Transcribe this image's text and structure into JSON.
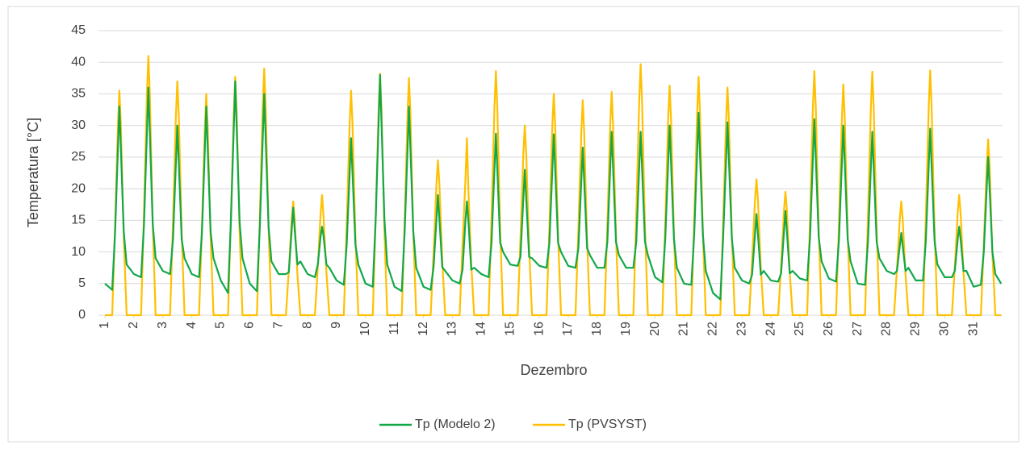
{
  "chart_data": {
    "type": "line",
    "ylabel": "Temperatura [°C]",
    "xlabel": "Dezembro",
    "xlim": [
      1,
      32
    ],
    "xticks": [
      1,
      2,
      3,
      4,
      5,
      6,
      7,
      8,
      9,
      10,
      11,
      12,
      13,
      14,
      15,
      16,
      17,
      18,
      19,
      20,
      21,
      22,
      23,
      24,
      25,
      26,
      27,
      28,
      29,
      30,
      31
    ],
    "ylim": [
      0,
      45
    ],
    "yticks": [
      0,
      5,
      10,
      15,
      20,
      25,
      30,
      35,
      40,
      45
    ],
    "grid": true,
    "legend": "bottom",
    "x": [
      1,
      1.25,
      1.35,
      1.45,
      1.5,
      1.55,
      1.65,
      1.75,
      2,
      2.25,
      2.35,
      2.45,
      2.5,
      2.55,
      2.65,
      2.75,
      3,
      3.25,
      3.35,
      3.45,
      3.5,
      3.55,
      3.65,
      3.75,
      4,
      4.25,
      4.35,
      4.45,
      4.5,
      4.55,
      4.65,
      4.75,
      5,
      5.25,
      5.35,
      5.45,
      5.5,
      5.55,
      5.65,
      5.75,
      6,
      6.25,
      6.35,
      6.45,
      6.5,
      6.55,
      6.65,
      6.75,
      7,
      7.25,
      7.35,
      7.45,
      7.5,
      7.55,
      7.65,
      7.75,
      8,
      8.25,
      8.35,
      8.45,
      8.5,
      8.55,
      8.65,
      8.75,
      9,
      9.25,
      9.35,
      9.45,
      9.5,
      9.55,
      9.65,
      9.75,
      10,
      10.25,
      10.35,
      10.45,
      10.5,
      10.55,
      10.65,
      10.75,
      11,
      11.25,
      11.35,
      11.45,
      11.5,
      11.55,
      11.65,
      11.75,
      12,
      12.25,
      12.35,
      12.45,
      12.5,
      12.55,
      12.65,
      12.75,
      13,
      13.25,
      13.35,
      13.45,
      13.5,
      13.55,
      13.65,
      13.75,
      14,
      14.25,
      14.35,
      14.45,
      14.5,
      14.55,
      14.65,
      14.75,
      15,
      15.25,
      15.35,
      15.45,
      15.5,
      15.55,
      15.65,
      15.75,
      16,
      16.25,
      16.35,
      16.45,
      16.5,
      16.55,
      16.65,
      16.75,
      17,
      17.25,
      17.35,
      17.45,
      17.5,
      17.55,
      17.65,
      17.75,
      18,
      18.25,
      18.35,
      18.45,
      18.5,
      18.55,
      18.65,
      18.75,
      19,
      19.25,
      19.35,
      19.45,
      19.5,
      19.55,
      19.65,
      19.75,
      20,
      20.25,
      20.35,
      20.45,
      20.5,
      20.55,
      20.65,
      20.75,
      21,
      21.25,
      21.35,
      21.45,
      21.5,
      21.55,
      21.65,
      21.75,
      22,
      22.25,
      22.35,
      22.45,
      22.5,
      22.55,
      22.65,
      22.75,
      23,
      23.25,
      23.35,
      23.45,
      23.5,
      23.55,
      23.65,
      23.75,
      24,
      24.25,
      24.35,
      24.45,
      24.5,
      24.55,
      24.65,
      24.75,
      25,
      25.25,
      25.35,
      25.45,
      25.5,
      25.55,
      25.65,
      25.75,
      26,
      26.25,
      26.35,
      26.45,
      26.5,
      26.55,
      26.65,
      26.75,
      27,
      27.25,
      27.35,
      27.45,
      27.5,
      27.55,
      27.65,
      27.75,
      28,
      28.25,
      28.35,
      28.45,
      28.5,
      28.55,
      28.65,
      28.75,
      29,
      29.25,
      29.35,
      29.45,
      29.5,
      29.55,
      29.65,
      29.75,
      30,
      30.25,
      30.35,
      30.45,
      30.5,
      30.55,
      30.65,
      30.75,
      31,
      31.25,
      31.35,
      31.45,
      31.5,
      31.55,
      31.65,
      31.75,
      31.95
    ],
    "series": [
      {
        "name": "Tp (Modelo 2)",
        "color": "#12a84a",
        "values": [
          5,
          4,
          13.2,
          26.4,
          33,
          26.4,
          13.2,
          8,
          6.5,
          6,
          14.4,
          28.8,
          36,
          28.8,
          14.4,
          9,
          7,
          6.5,
          12,
          24,
          30,
          24,
          12,
          9,
          6.5,
          6,
          13.2,
          26.4,
          33,
          26.4,
          13.2,
          9,
          5.5,
          3.5,
          14.8,
          29.6,
          37,
          29.6,
          14.8,
          9,
          5,
          3.8,
          14,
          28,
          35,
          28,
          14,
          8.5,
          6.5,
          6.5,
          6.8,
          13.6,
          17,
          13.6,
          8,
          8.5,
          6.5,
          6,
          8,
          12.5,
          14,
          12.5,
          8,
          7.5,
          5.5,
          4.8,
          11.2,
          22.4,
          28,
          22.4,
          11.2,
          8,
          5,
          4.5,
          15.2,
          30.4,
          38,
          30.4,
          15.2,
          8,
          4.5,
          3.8,
          13.2,
          26.4,
          33,
          26.4,
          13.2,
          7.5,
          4.5,
          4,
          7.6,
          15.2,
          19,
          15.2,
          7.6,
          7,
          5.5,
          5,
          7.2,
          15,
          18,
          15,
          7.2,
          7.5,
          6.5,
          6,
          11.5,
          23,
          28.7,
          23,
          11.5,
          10,
          8,
          7.8,
          9.2,
          18.4,
          23,
          18.4,
          9.2,
          9,
          7.8,
          7.5,
          11.4,
          22.9,
          28.6,
          22.9,
          11.4,
          10,
          7.8,
          7.5,
          10.6,
          21.2,
          26.5,
          21.2,
          10.6,
          9.5,
          7.5,
          7.5,
          11.6,
          23.2,
          29,
          23.2,
          11.6,
          9.5,
          7.5,
          7.5,
          11.6,
          23.2,
          29,
          23.2,
          11.6,
          9.5,
          6,
          5.2,
          12,
          24,
          30,
          24,
          12,
          7.5,
          5,
          4.8,
          12.8,
          25.6,
          32,
          25.6,
          12.8,
          7,
          3.5,
          2.5,
          12.2,
          24.4,
          30.5,
          24.4,
          12.2,
          7.5,
          5.5,
          5,
          6.4,
          12.8,
          16,
          12.8,
          6.4,
          7,
          5.5,
          5.3,
          6.6,
          13.2,
          16.5,
          13.2,
          6.6,
          7,
          5.8,
          5.5,
          12.4,
          24.8,
          31,
          24.8,
          12.4,
          8.5,
          5.8,
          5.3,
          12,
          24,
          30,
          24,
          12,
          8.5,
          5,
          4.8,
          11.6,
          23.2,
          29,
          23.2,
          11.6,
          9,
          7,
          6.5,
          7,
          11,
          13,
          11,
          7,
          7.5,
          5.5,
          5.5,
          11.8,
          23.6,
          29.5,
          23.6,
          11.8,
          8,
          6,
          6,
          7,
          12,
          14,
          12,
          7,
          7,
          4.5,
          4.8,
          10,
          20,
          25,
          20,
          10,
          6.5,
          5
        ]
      },
      {
        "name": "Tp (PVSYST)",
        "color": "#ffc000",
        "values": [
          0,
          0,
          14.2,
          30.2,
          35.5,
          30.2,
          12.4,
          0,
          0,
          0,
          16.4,
          34.9,
          41,
          34.9,
          14.4,
          0,
          0,
          0,
          14.8,
          31.5,
          37,
          31.5,
          13,
          0,
          0,
          0,
          14,
          29.8,
          35,
          29.8,
          12.3,
          0,
          0,
          0,
          15.1,
          32,
          37.7,
          32,
          13.2,
          0,
          0,
          0,
          15.6,
          33.2,
          39,
          33.2,
          13.7,
          0,
          0,
          0,
          7.2,
          15.3,
          18,
          15.3,
          6.3,
          0,
          0,
          0,
          7.6,
          16.2,
          19,
          15.5,
          6.7,
          0,
          0,
          0,
          14.2,
          30.2,
          35.5,
          30.2,
          12.4,
          0,
          0,
          0,
          15.3,
          32.5,
          38.2,
          32.5,
          13.4,
          0,
          0,
          0,
          15,
          31.9,
          37.5,
          31.9,
          13.1,
          0,
          0,
          0,
          9.8,
          20.8,
          24.5,
          20.8,
          8.6,
          0,
          0,
          0,
          11.2,
          21.5,
          28,
          20,
          8,
          0,
          0,
          0,
          15.4,
          32.8,
          38.6,
          32.8,
          13.5,
          0,
          0,
          0,
          12,
          25.5,
          30,
          25.5,
          10.5,
          0,
          0,
          0,
          14,
          29.8,
          35,
          29.8,
          12.3,
          0,
          0,
          0,
          13.6,
          28.9,
          34,
          28.9,
          11.9,
          0,
          0,
          0,
          14.1,
          30,
          35.3,
          30,
          12.4,
          0,
          0,
          0,
          15.9,
          33.7,
          39.7,
          33.7,
          13.9,
          0,
          0,
          0,
          14.5,
          30.9,
          36.3,
          30.9,
          12.7,
          0,
          0,
          0,
          15.1,
          32,
          37.7,
          32,
          13.2,
          0,
          0,
          0,
          14.4,
          30.6,
          36,
          30.6,
          12.6,
          0,
          0,
          0,
          8.6,
          18.3,
          21.5,
          18.3,
          7.5,
          0,
          0,
          0,
          7.8,
          16.6,
          19.5,
          16.6,
          6.8,
          0,
          0,
          0,
          15.4,
          32.8,
          38.6,
          32.8,
          13.5,
          0,
          0,
          0,
          14.6,
          31,
          36.5,
          31,
          12.8,
          0,
          0,
          0,
          15.4,
          32.7,
          38.5,
          32.7,
          13.5,
          0,
          0,
          0,
          7.2,
          15.3,
          18,
          15.3,
          6.3,
          0,
          0,
          0,
          15.5,
          32.9,
          38.7,
          32.9,
          13.5,
          0,
          0,
          0,
          7.6,
          16.2,
          19,
          16.2,
          6.7,
          0,
          0,
          0,
          11.1,
          23.6,
          27.8,
          23.6,
          9.7,
          0,
          0
        ]
      }
    ]
  }
}
